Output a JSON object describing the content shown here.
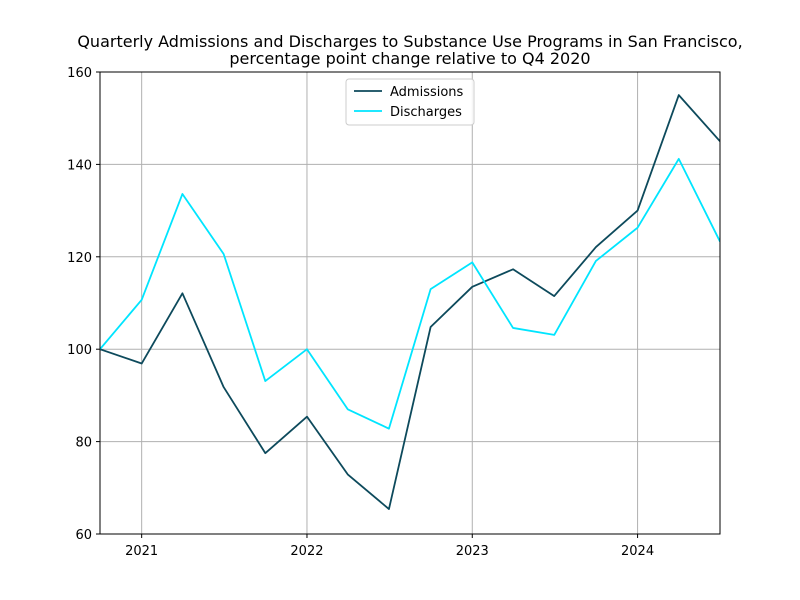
{
  "chart_data": {
    "type": "line",
    "title": [
      "Quarterly Admissions and Discharges to Substance Use Programs in San Francisco,",
      "percentage point change relative to Q4 2020"
    ],
    "xlabel": "",
    "ylabel": "",
    "x": [
      "2020-10-01",
      "2021-01-01",
      "2021-04-01",
      "2021-07-01",
      "2021-10-01",
      "2022-01-01",
      "2022-04-01",
      "2022-07-01",
      "2022-10-01",
      "2023-01-01",
      "2023-04-01",
      "2023-07-01",
      "2023-10-01",
      "2024-01-01",
      "2024-04-01",
      "2024-07-01"
    ],
    "xlim": [
      "2020-10-01",
      "2024-07-01"
    ],
    "xticks": [
      {
        "date": "2021-01-01",
        "label": "2021"
      },
      {
        "date": "2022-01-01",
        "label": "2022"
      },
      {
        "date": "2023-01-01",
        "label": "2023"
      },
      {
        "date": "2024-01-01",
        "label": "2024"
      }
    ],
    "ylim": [
      60,
      160
    ],
    "yticks": [
      60,
      80,
      100,
      120,
      140,
      160
    ],
    "grid": true,
    "legend_position": "top-center",
    "series": [
      {
        "name": "Admissions",
        "color": "#0d4a5c",
        "values": [
          100,
          96.9,
          112.1,
          91.8,
          77.5,
          85.4,
          72.9,
          65.4,
          104.8,
          113.5,
          117.3,
          111.5,
          122.1,
          130.0,
          155.0,
          145.0
        ]
      },
      {
        "name": "Discharges",
        "color": "#00e5ff",
        "values": [
          100,
          110.7,
          133.6,
          120.6,
          93.1,
          100.0,
          87.0,
          82.8,
          113.0,
          118.8,
          104.6,
          103.1,
          119.1,
          126.3,
          141.2,
          123.3
        ]
      }
    ]
  }
}
